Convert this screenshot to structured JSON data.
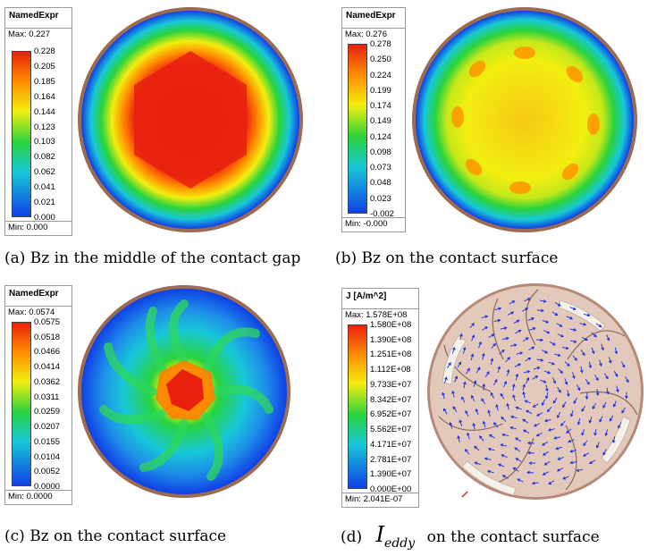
{
  "panels": [
    {
      "legend": {
        "title": "NamedExpr",
        "max": "Max: 0.227",
        "min": "Min: 0.000",
        "ticks": [
          "0.228",
          "0.205",
          "0.185",
          "0.164",
          "0.144",
          "0.123",
          "0.103",
          "0.082",
          "0.062",
          "0.041",
          "0.021",
          "0.000"
        ]
      },
      "caption": "(a) Bz in the middle of the contact gap"
    },
    {
      "legend": {
        "title": "NamedExpr",
        "max": "Max: 0.276",
        "min": "Min: -0.000",
        "ticks": [
          "0.278",
          "0.250",
          "0.224",
          "0.199",
          "0.174",
          "0.149",
          "0.124",
          "0.098",
          "0.073",
          "0.048",
          "0.023",
          "-0.002"
        ]
      },
      "caption": "(b) Bz on the contact surface"
    },
    {
      "legend": {
        "title": "NamedExpr",
        "max": "Max: 0.0574",
        "min": "Min: 0.0000",
        "ticks": [
          "0.0575",
          "0.0518",
          "0.0466",
          "0.0414",
          "0.0362",
          "0.0311",
          "0.0259",
          "0.0207",
          "0.0155",
          "0.0104",
          "0.0052",
          "0.0000"
        ]
      },
      "caption": "(c) Bz on the contact surface"
    },
    {
      "legend": {
        "title": "J [A/m^2]",
        "max": "Max:   1.578E+08",
        "min": "Min:   2.041E-07",
        "ticks": [
          "1.580E+08",
          "1.390E+08",
          "1.251E+08",
          "1.112E+08",
          "9.733E+07",
          "8.342E+07",
          "6.952E+07",
          "5.562E+07",
          "4.171E+07",
          "2.781E+07",
          "1.390E+07",
          "0.000E+00"
        ]
      },
      "caption_prefix": "(d)",
      "caption_symbol": "I",
      "caption_subscript": "eddy",
      "caption_suffix": "on the contact surface"
    }
  ],
  "colors": {
    "red": "#e8210f",
    "orange": "#ff8c00",
    "yellow": "#f2ee10",
    "green": "#29d33c",
    "cyan": "#18c8d8",
    "blue": "#1040e6",
    "rim": "#9b6b52",
    "disk_d": "#e3c9bc",
    "arrow": "#1a2fe0"
  }
}
